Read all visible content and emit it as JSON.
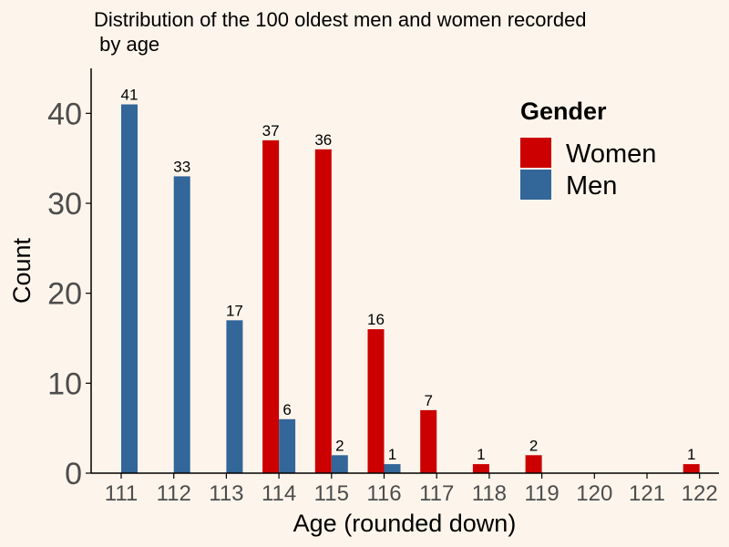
{
  "chart_data": {
    "type": "bar",
    "title_lines": [
      "Distribution of the 100 oldest men and women recorded",
      " by age"
    ],
    "xlabel": "Age (rounded down)",
    "ylabel": "Count",
    "categories": [
      "111",
      "112",
      "113",
      "114",
      "115",
      "116",
      "117",
      "118",
      "119",
      "120",
      "121",
      "122"
    ],
    "series": [
      {
        "name": "Women",
        "color": "#cc0000",
        "values": [
          0,
          0,
          0,
          37,
          36,
          16,
          7,
          1,
          2,
          0,
          0,
          1
        ]
      },
      {
        "name": "Men",
        "color": "#336699",
        "values": [
          41,
          33,
          17,
          6,
          2,
          1,
          0,
          0,
          0,
          0,
          0,
          0
        ]
      }
    ],
    "ylim": [
      0,
      45
    ],
    "yticks": [
      0,
      10,
      20,
      30,
      40
    ],
    "grid": false,
    "legend": {
      "title": "Gender",
      "position": "top-right"
    }
  }
}
